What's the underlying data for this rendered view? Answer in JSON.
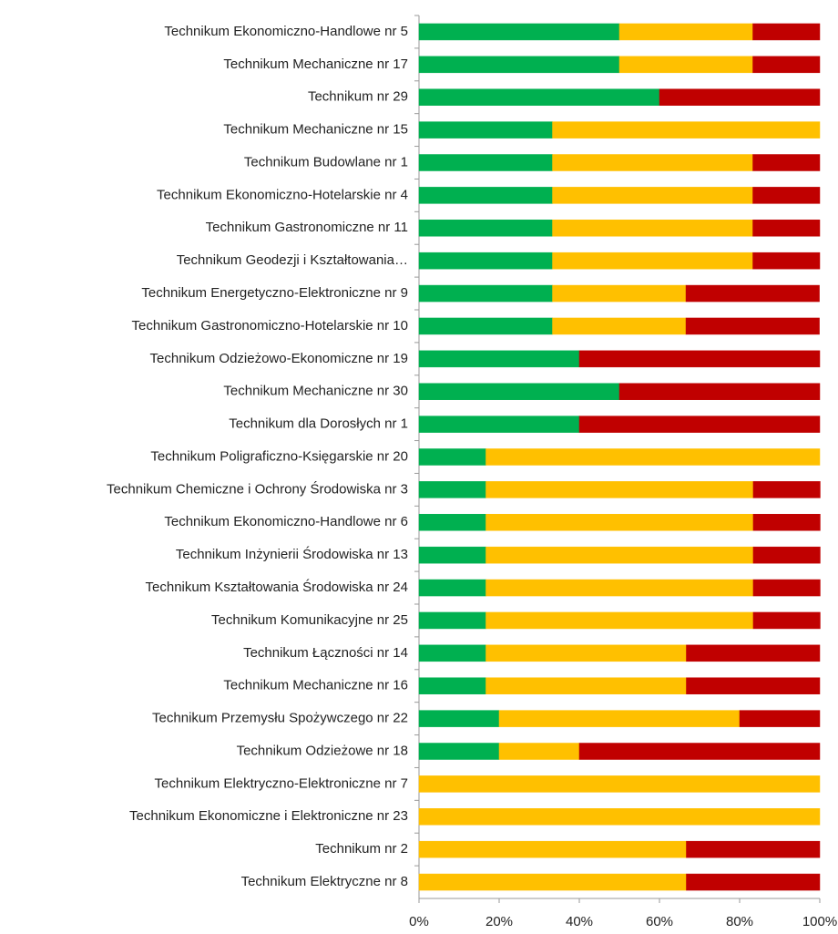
{
  "chart_data": {
    "type": "stacked_bar_horizontal",
    "categories": [
      "Technikum Ekonomiczno-Handlowe nr 5",
      "Technikum Mechaniczne nr 17",
      "Technikum nr 29",
      "Technikum Mechaniczne nr 15",
      "Technikum Budowlane nr 1",
      "Technikum Ekonomiczno-Hotelarskie nr 4",
      "Technikum Gastronomiczne nr 11",
      "Technikum Geodezji i Kształtowania…",
      "Technikum Energetyczno-Elektroniczne nr 9",
      "Technikum Gastronomiczno-Hotelarskie nr 10",
      "Technikum Odzieżowo-Ekonomiczne nr 19",
      "Technikum Mechaniczne nr 30",
      "Technikum dla Dorosłych nr 1",
      "Technikum Poligraficzno-Księgarskie nr 20",
      "Technikum Chemiczne i Ochrony Środowiska nr 3",
      "Technikum Ekonomiczno-Handlowe nr 6",
      "Technikum Inżynierii Środowiska nr 13",
      "Technikum Kształtowania Środowiska nr 24",
      "Technikum Komunikacyjne nr 25",
      "Technikum Łączności nr 14",
      "Technikum Mechaniczne nr 16",
      "Technikum Przemysłu Spożywczego nr 22",
      "Technikum Odzieżowe nr 18",
      "Technikum Elektryczno-Elektroniczne nr 7",
      "Technikum Ekonomiczne i Elektroniczne nr 23",
      "Technikum nr 2",
      "Technikum Elektryczne nr 8"
    ],
    "series": [
      {
        "color": "#00b050",
        "values": [
          50,
          50,
          60,
          33.3,
          33.3,
          33.3,
          33.3,
          33.3,
          33.3,
          33.3,
          40,
          50,
          40,
          16.7,
          16.7,
          16.7,
          16.7,
          16.7,
          16.7,
          16.7,
          16.7,
          20,
          20,
          0,
          0,
          0,
          0
        ]
      },
      {
        "color": "#ffc000",
        "values": [
          33.3,
          33.3,
          0,
          66.7,
          50,
          50,
          50,
          50,
          33.3,
          33.3,
          0,
          0,
          0,
          83.3,
          66.7,
          66.7,
          66.7,
          66.7,
          66.7,
          50,
          50,
          60,
          20,
          100,
          100,
          66.7,
          66.7
        ]
      },
      {
        "color": "#c00000",
        "values": [
          16.7,
          16.7,
          40,
          0,
          16.7,
          16.7,
          16.7,
          16.7,
          33.3,
          33.3,
          60,
          50,
          60,
          0,
          16.7,
          16.7,
          16.7,
          16.7,
          16.7,
          33.3,
          33.3,
          20,
          60,
          0,
          0,
          33.3,
          33.3
        ]
      }
    ],
    "xlim": [
      0,
      100
    ],
    "xticks": [
      {
        "value": 0,
        "label": "0%"
      },
      {
        "value": 20,
        "label": "20%"
      },
      {
        "value": 40,
        "label": "40%"
      },
      {
        "value": 60,
        "label": "60%"
      },
      {
        "value": 80,
        "label": "80%"
      },
      {
        "value": 100,
        "label": "100%"
      }
    ]
  }
}
